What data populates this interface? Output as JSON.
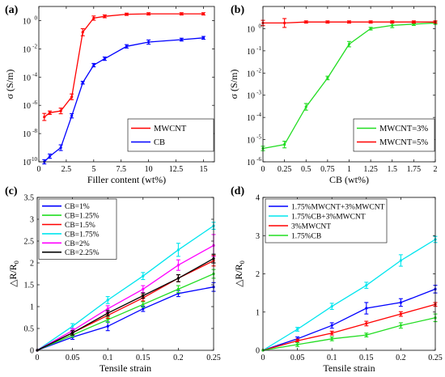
{
  "chart_data": [
    {
      "panel": "(a)",
      "type": "line",
      "xlabel": "Filler content (wt%)",
      "ylabel": "σ (S/m)",
      "yscale": "log",
      "xlim": [
        0,
        16
      ],
      "ylim": [
        1e-10,
        10
      ],
      "xticks": [
        0,
        2.5,
        5,
        7.5,
        10,
        12.5,
        15
      ],
      "xtick_labels": [
        "0",
        "2.5",
        "5",
        "7.5",
        "10",
        "12.5",
        "15"
      ],
      "yticks": [
        1e-10,
        1e-08,
        1e-06,
        0.0001,
        0.01,
        1
      ],
      "ytick_labels": [
        [
          "10",
          "-10"
        ],
        [
          "10",
          "-8"
        ],
        [
          "10",
          "-6"
        ],
        [
          "10",
          "-4"
        ],
        [
          "10",
          "-2"
        ],
        [
          "10",
          "0"
        ]
      ],
      "legend": "bottom-right",
      "series": [
        {
          "name": "MWCNT",
          "color": "#ff0000",
          "x": [
            0.5,
            1,
            2,
            3,
            4,
            5,
            6,
            8,
            10,
            13,
            15
          ],
          "y": [
            1.5e-07,
            3e-07,
            4e-07,
            4e-06,
            0.15,
            1.5,
            2,
            2.8,
            3,
            3,
            3
          ],
          "err": [
            0.25,
            0.12,
            0.2,
            0.2,
            0.25,
            0.15,
            0.1,
            0.08,
            0.08,
            0.08,
            0.08
          ]
        },
        {
          "name": "CB",
          "color": "#0000ff",
          "x": [
            0.5,
            1,
            2,
            3,
            4,
            5,
            6,
            8,
            10,
            13,
            15
          ],
          "y": [
            1e-10,
            2.5e-10,
            1e-09,
            1.8e-07,
            4e-05,
            0.0007,
            0.002,
            0.015,
            0.03,
            0.045,
            0.06
          ],
          "err": [
            0.15,
            0.15,
            0.2,
            0.15,
            0.1,
            0.12,
            0.12,
            0.12,
            0.15,
            0.1,
            0.1
          ]
        }
      ]
    },
    {
      "panel": "(b)",
      "type": "line",
      "xlabel": "CB (wt%)",
      "ylabel": "σ (S/m)",
      "yscale": "log",
      "xlim": [
        0,
        2
      ],
      "ylim": [
        1e-06,
        10
      ],
      "xticks": [
        0,
        0.25,
        0.5,
        0.75,
        1,
        1.25,
        1.5,
        1.75,
        2
      ],
      "xtick_labels": [
        "0",
        "0.25",
        "0.5",
        "0.75",
        "1",
        "1.25",
        "1.5",
        "1.75",
        "2"
      ],
      "yticks": [
        1e-06,
        1e-05,
        0.0001,
        0.001,
        0.01,
        0.1,
        1
      ],
      "ytick_labels": [
        [
          "10",
          "-6"
        ],
        [
          "10",
          "-5"
        ],
        [
          "10",
          "-4"
        ],
        [
          "10",
          "-3"
        ],
        [
          "10",
          "-2"
        ],
        [
          "10",
          "-1"
        ],
        [
          "10",
          "0"
        ]
      ],
      "legend": "bottom-right",
      "series": [
        {
          "name": "MWCNT=3%",
          "color": "#22dd22",
          "x": [
            0,
            0.25,
            0.5,
            0.75,
            1,
            1.25,
            1.5,
            1.75,
            2
          ],
          "y": [
            4e-06,
            6e-06,
            0.0003,
            0.006,
            0.2,
            1,
            1.4,
            1.6,
            1.8
          ],
          "err": [
            0.1,
            0.15,
            0.15,
            0.08,
            0.12,
            0.06,
            0.1,
            0.06,
            0.06
          ]
        },
        {
          "name": "MWCNT=5%",
          "color": "#ff0000",
          "x": [
            0,
            0.25,
            0.5,
            0.75,
            1,
            1.25,
            1.5,
            1.75,
            2
          ],
          "y": [
            1.8,
            1.8,
            2,
            2,
            2,
            2,
            2,
            2,
            2
          ],
          "err": [
            0.12,
            0.2,
            0.05,
            0.05,
            0.05,
            0.05,
            0.05,
            0.05,
            0.05
          ]
        }
      ]
    },
    {
      "panel": "(c)",
      "type": "line",
      "xlabel": "Tensile strain",
      "ylabel": "△R/R",
      "ylabel_sub": "0",
      "xlim": [
        0,
        0.25
      ],
      "ylim": [
        0,
        3.5
      ],
      "xticks": [
        0,
        0.05,
        0.1,
        0.15,
        0.2,
        0.25
      ],
      "xtick_labels": [
        "0",
        "0.05",
        "0.1",
        "0.15",
        "0.2",
        "0.25"
      ],
      "yticks": [
        0,
        0.5,
        1,
        1.5,
        2,
        2.5,
        3,
        3.5
      ],
      "ytick_labels": [
        "0",
        "0.5",
        "1",
        "1.5",
        "2",
        "2.5",
        "3",
        "3.5"
      ],
      "legend": "top-left",
      "series": [
        {
          "name": "CB=1%",
          "color": "#0000ff",
          "x": [
            0,
            0.05,
            0.1,
            0.15,
            0.2,
            0.25
          ],
          "y": [
            0,
            0.3,
            0.55,
            0.95,
            1.3,
            1.45
          ],
          "err": [
            0,
            0.05,
            0.1,
            0.06,
            0.07,
            0.1
          ]
        },
        {
          "name": "CB=1.25%",
          "color": "#22dd22",
          "x": [
            0,
            0.05,
            0.1,
            0.15,
            0.2,
            0.25
          ],
          "y": [
            0,
            0.35,
            0.7,
            1.05,
            1.4,
            1.75
          ],
          "err": [
            0,
            0.05,
            0.06,
            0.06,
            0.08,
            0.1
          ]
        },
        {
          "name": "CB=1.5%",
          "color": "#ff0000",
          "x": [
            0,
            0.05,
            0.1,
            0.15,
            0.2,
            0.25
          ],
          "y": [
            0,
            0.4,
            0.8,
            1.2,
            1.65,
            2.05
          ],
          "err": [
            0,
            0.05,
            0.07,
            0.07,
            0.08,
            0.12
          ]
        },
        {
          "name": "CB=1.75%",
          "color": "#00e5ee",
          "x": [
            0,
            0.05,
            0.1,
            0.15,
            0.2,
            0.25
          ],
          "y": [
            0,
            0.55,
            1.15,
            1.7,
            2.3,
            2.85
          ],
          "err": [
            0,
            0.06,
            0.08,
            0.08,
            0.15,
            0.08
          ]
        },
        {
          "name": "CB=2%",
          "color": "#ff00ff",
          "x": [
            0,
            0.05,
            0.1,
            0.15,
            0.2,
            0.25
          ],
          "y": [
            0,
            0.45,
            0.95,
            1.4,
            1.95,
            2.4
          ],
          "err": [
            0,
            0.05,
            0.07,
            0.08,
            0.12,
            0.25
          ]
        },
        {
          "name": "CB=2.25%",
          "color": "#000000",
          "x": [
            0,
            0.05,
            0.1,
            0.15,
            0.2,
            0.25
          ],
          "y": [
            0,
            0.4,
            0.85,
            1.25,
            1.65,
            2.1
          ],
          "err": [
            0,
            0.05,
            0.06,
            0.06,
            0.08,
            0.1
          ]
        }
      ]
    },
    {
      "panel": "(d)",
      "type": "line",
      "xlabel": "Tensile strain",
      "ylabel": "△R/R",
      "ylabel_sub": "0",
      "xlim": [
        0,
        0.25
      ],
      "ylim": [
        0,
        4
      ],
      "xticks": [
        0,
        0.05,
        0.1,
        0.15,
        0.2,
        0.25
      ],
      "xtick_labels": [
        "0",
        "0.05",
        "0.1",
        "0.15",
        "0.2",
        "0.25"
      ],
      "yticks": [
        0,
        1,
        2,
        3,
        4
      ],
      "ytick_labels": [
        "0",
        "1",
        "2",
        "3",
        "4"
      ],
      "legend": "top-left",
      "series": [
        {
          "name": "1.75%MWCNT+3%MWCNT",
          "color": "#0000ff",
          "x": [
            0,
            0.05,
            0.1,
            0.15,
            0.2,
            0.25
          ],
          "y": [
            0,
            0.3,
            0.65,
            1.1,
            1.25,
            1.6
          ],
          "err": [
            0,
            0.05,
            0.07,
            0.15,
            0.1,
            0.1
          ]
        },
        {
          "name": "1.75%CB+3%MWCNT",
          "color": "#00e5ee",
          "x": [
            0,
            0.05,
            0.1,
            0.15,
            0.2,
            0.25
          ],
          "y": [
            0,
            0.55,
            1.15,
            1.7,
            2.35,
            2.9
          ],
          "err": [
            0,
            0.05,
            0.08,
            0.08,
            0.15,
            0.08
          ]
        },
        {
          "name": "3%MWCNT",
          "color": "#ff0000",
          "x": [
            0,
            0.05,
            0.1,
            0.15,
            0.2,
            0.25
          ],
          "y": [
            0,
            0.25,
            0.45,
            0.7,
            0.95,
            1.2
          ],
          "err": [
            0,
            0.04,
            0.05,
            0.06,
            0.06,
            0.05
          ]
        },
        {
          "name": "1.75%CB",
          "color": "#22dd22",
          "x": [
            0,
            0.05,
            0.1,
            0.15,
            0.2,
            0.25
          ],
          "y": [
            0,
            0.15,
            0.3,
            0.4,
            0.65,
            0.85
          ],
          "err": [
            0,
            0.05,
            0.05,
            0.05,
            0.07,
            0.1
          ]
        }
      ]
    }
  ]
}
